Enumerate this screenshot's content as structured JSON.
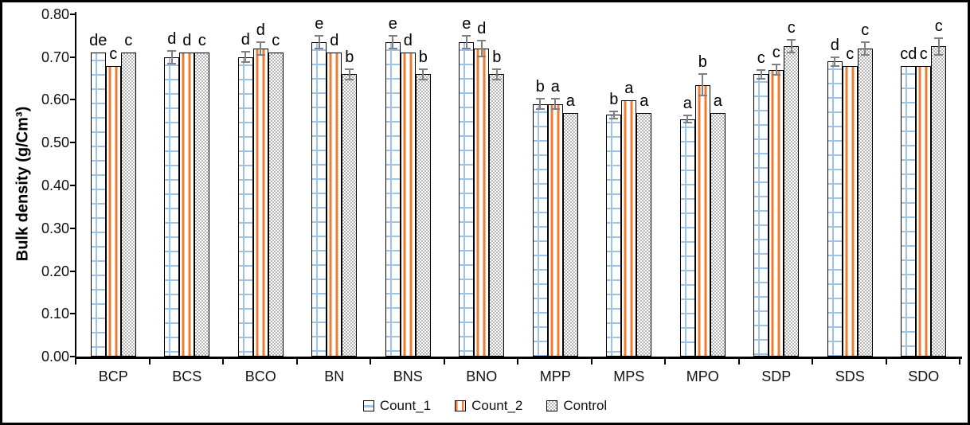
{
  "chart_data": {
    "type": "bar",
    "title": "",
    "ylabel": "Bulk density (g/Cm³)",
    "xlabel": "",
    "ylim": [
      0,
      0.8
    ],
    "ytick_step": 0.1,
    "yticks": [
      "0.00",
      "0.10",
      "0.20",
      "0.30",
      "0.40",
      "0.50",
      "0.60",
      "0.70",
      "0.80"
    ],
    "grid": false,
    "legend_position": "bottom-center",
    "error_bar_color": "#808080",
    "categories": [
      "BCP",
      "BCS",
      "BCO",
      "BN",
      "BNS",
      "BNO",
      "MPP",
      "MPS",
      "MPO",
      "SDP",
      "SDS",
      "SDO"
    ],
    "series": [
      {
        "name": "Count_1",
        "pattern": "blue-grid",
        "color": "#9DC3E6",
        "values": [
          0.71,
          0.7,
          0.7,
          0.735,
          0.735,
          0.735,
          0.59,
          0.565,
          0.555,
          0.66,
          0.69,
          0.68
        ],
        "errors": [
          0,
          0.015,
          0.012,
          0.015,
          0.015,
          0.015,
          0.012,
          0.008,
          0.008,
          0.01,
          0.01,
          0
        ],
        "letters": [
          "de",
          "d",
          "d",
          "e",
          "e",
          "e",
          "b",
          "b",
          "a",
          "c",
          "d",
          "cd"
        ]
      },
      {
        "name": "Count_2",
        "pattern": "orange-stripes",
        "color": "#ED7D31",
        "values": [
          0.68,
          0.71,
          0.72,
          0.71,
          0.71,
          0.72,
          0.59,
          0.6,
          0.635,
          0.67,
          0.68,
          0.68
        ],
        "errors": [
          0,
          0,
          0.015,
          0,
          0,
          0.018,
          0.012,
          0,
          0.025,
          0.012,
          0,
          0
        ],
        "letters": [
          "c",
          "d",
          "d",
          "d",
          "d",
          "d",
          "a",
          "a",
          "b",
          "c",
          "c",
          "c"
        ]
      },
      {
        "name": "Control",
        "pattern": "gray-checker",
        "color": "#BFBFBF",
        "values": [
          0.71,
          0.71,
          0.71,
          0.66,
          0.66,
          0.66,
          0.57,
          0.57,
          0.57,
          0.725,
          0.72,
          0.725
        ],
        "errors": [
          0,
          0,
          0,
          0.012,
          0.012,
          0.012,
          0,
          0,
          0,
          0.015,
          0.015,
          0.02
        ],
        "letters": [
          "c",
          "c",
          "c",
          "b",
          "b",
          "b",
          "a",
          "a",
          "a",
          "c",
          "c",
          "c"
        ]
      }
    ]
  }
}
